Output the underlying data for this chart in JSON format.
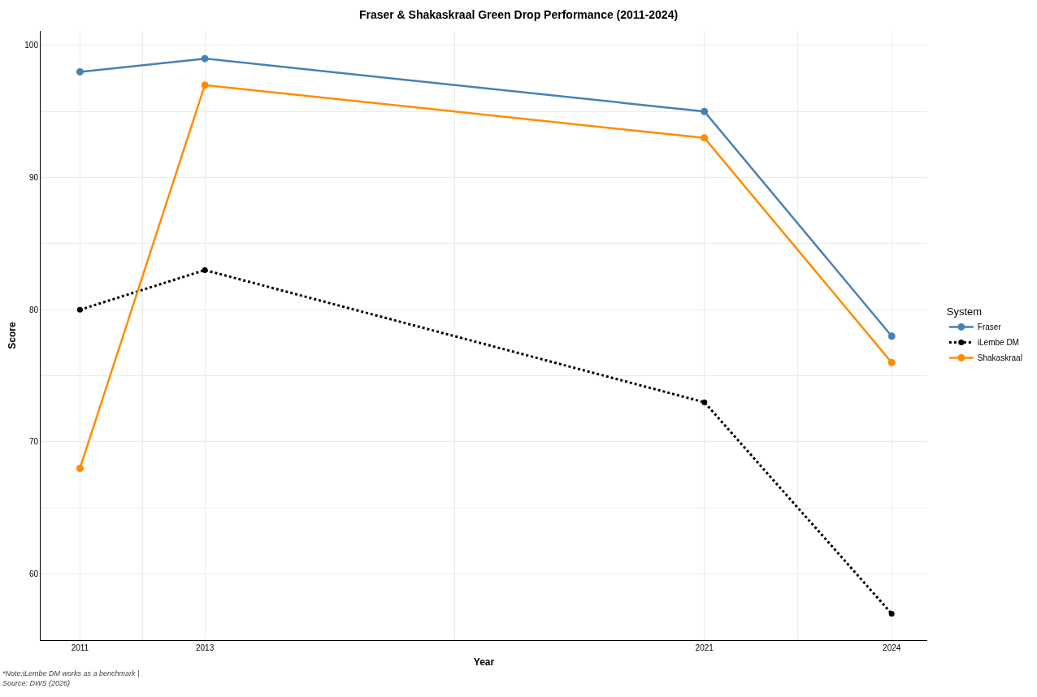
{
  "chart_data": {
    "type": "line",
    "title": "Fraser & Shakaskraal Green Drop Performance (2011-2024)",
    "xlabel": "Year",
    "ylabel": "Score",
    "legend_title": "System",
    "legend": "right",
    "grid": true,
    "marker": "circle",
    "x": [
      2011,
      2013,
      2021,
      2024
    ],
    "xlim": [
      2010.37,
      2024.57
    ],
    "xticks": [
      2011,
      {
        "value": 2012,
        "label": null
      },
      2013,
      {
        "value": 2017,
        "label": null
      },
      2021,
      {
        "value": 2022.5,
        "label": null
      },
      2024
    ],
    "ylim": [
      55,
      101.1
    ],
    "yticks": [
      60,
      {
        "value": 65,
        "label": null
      },
      70,
      {
        "value": 75,
        "label": null
      },
      80,
      {
        "value": 85,
        "label": null
      },
      90,
      {
        "value": 95,
        "label": null
      },
      100
    ],
    "series": [
      {
        "name": "Fraser",
        "color": "#4682b4",
        "line_style": "solid",
        "values": [
          98,
          99,
          95,
          78
        ]
      },
      {
        "name": "iLembe DM",
        "color": "#000000",
        "line_style": "dotted",
        "values": [
          80,
          83,
          73,
          57
        ]
      },
      {
        "name": "Shakaskraal",
        "color": "#ff8c00",
        "line_style": "solid",
        "values": [
          68,
          97,
          93,
          76
        ]
      }
    ],
    "annotations": [
      "*Note:iLembe DM works as a benchmark |\nSource: DWS (2026)"
    ]
  }
}
